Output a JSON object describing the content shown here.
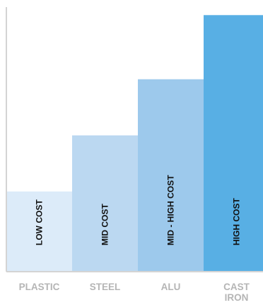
{
  "chart_data": {
    "type": "bar",
    "categories": [
      "PLASTIC",
      "STEEL",
      "ALU",
      "CAST IRON"
    ],
    "values": [
      1,
      1.7,
      2.4,
      3.2
    ],
    "bar_labels": [
      "LOW COST",
      "MID COST",
      "MID - HIGH COST",
      "HIGH COST"
    ],
    "ylim": [
      0,
      3.3
    ],
    "grid": false,
    "legend": "none",
    "colors": [
      "#dcebf9",
      "#bbd8f1",
      "#9dc9ec",
      "#58afe4"
    ],
    "axis_color": "#d4d4d4",
    "title": "",
    "xlabel": "",
    "ylabel": ""
  }
}
